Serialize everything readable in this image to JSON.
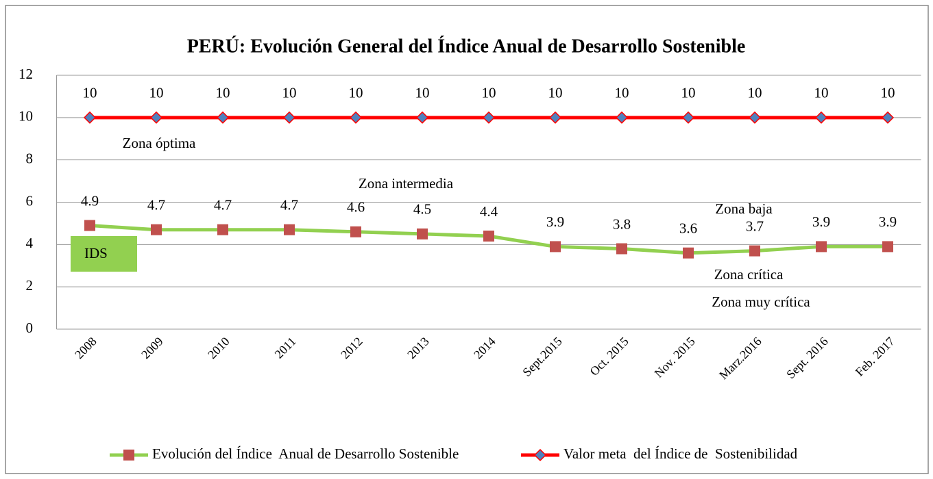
{
  "chart_data": {
    "type": "line",
    "title": "PERÚ: Evolución General  del Índice Anual de Desarrollo Sostenible",
    "categories": [
      "2008",
      "2009",
      "2010",
      "2011",
      "2012",
      "2013",
      "2014",
      "Sept.2015",
      "Oct. 2015",
      "Nov. 2015",
      "Marz.2016",
      "Sept. 2016",
      "Feb. 2017"
    ],
    "series": [
      {
        "name": "Evolución del Índice  Anual de Desarrollo Sostenible",
        "color": "#92d050",
        "marker": "square",
        "marker_color": "#c0504d",
        "values": [
          4.9,
          4.7,
          4.7,
          4.7,
          4.6,
          4.5,
          4.4,
          3.9,
          3.8,
          3.6,
          3.7,
          3.9,
          3.9
        ]
      },
      {
        "name": "Valor meta  del Índice de  Sostenibilidad",
        "color": "#ff0000",
        "marker": "diamond",
        "marker_color": "#4f81bd",
        "values": [
          10,
          10,
          10,
          10,
          10,
          10,
          10,
          10,
          10,
          10,
          10,
          10,
          10
        ]
      }
    ],
    "ylim": [
      0,
      12
    ],
    "yticks": [
      0,
      2,
      4,
      6,
      8,
      10,
      12
    ],
    "grid": true,
    "legend": "bottom",
    "annotations": [
      "Zona óptima",
      "Zona intermedia",
      "Zona baja",
      "Zona crítica",
      "Zona muy crítica",
      "IDS"
    ]
  }
}
